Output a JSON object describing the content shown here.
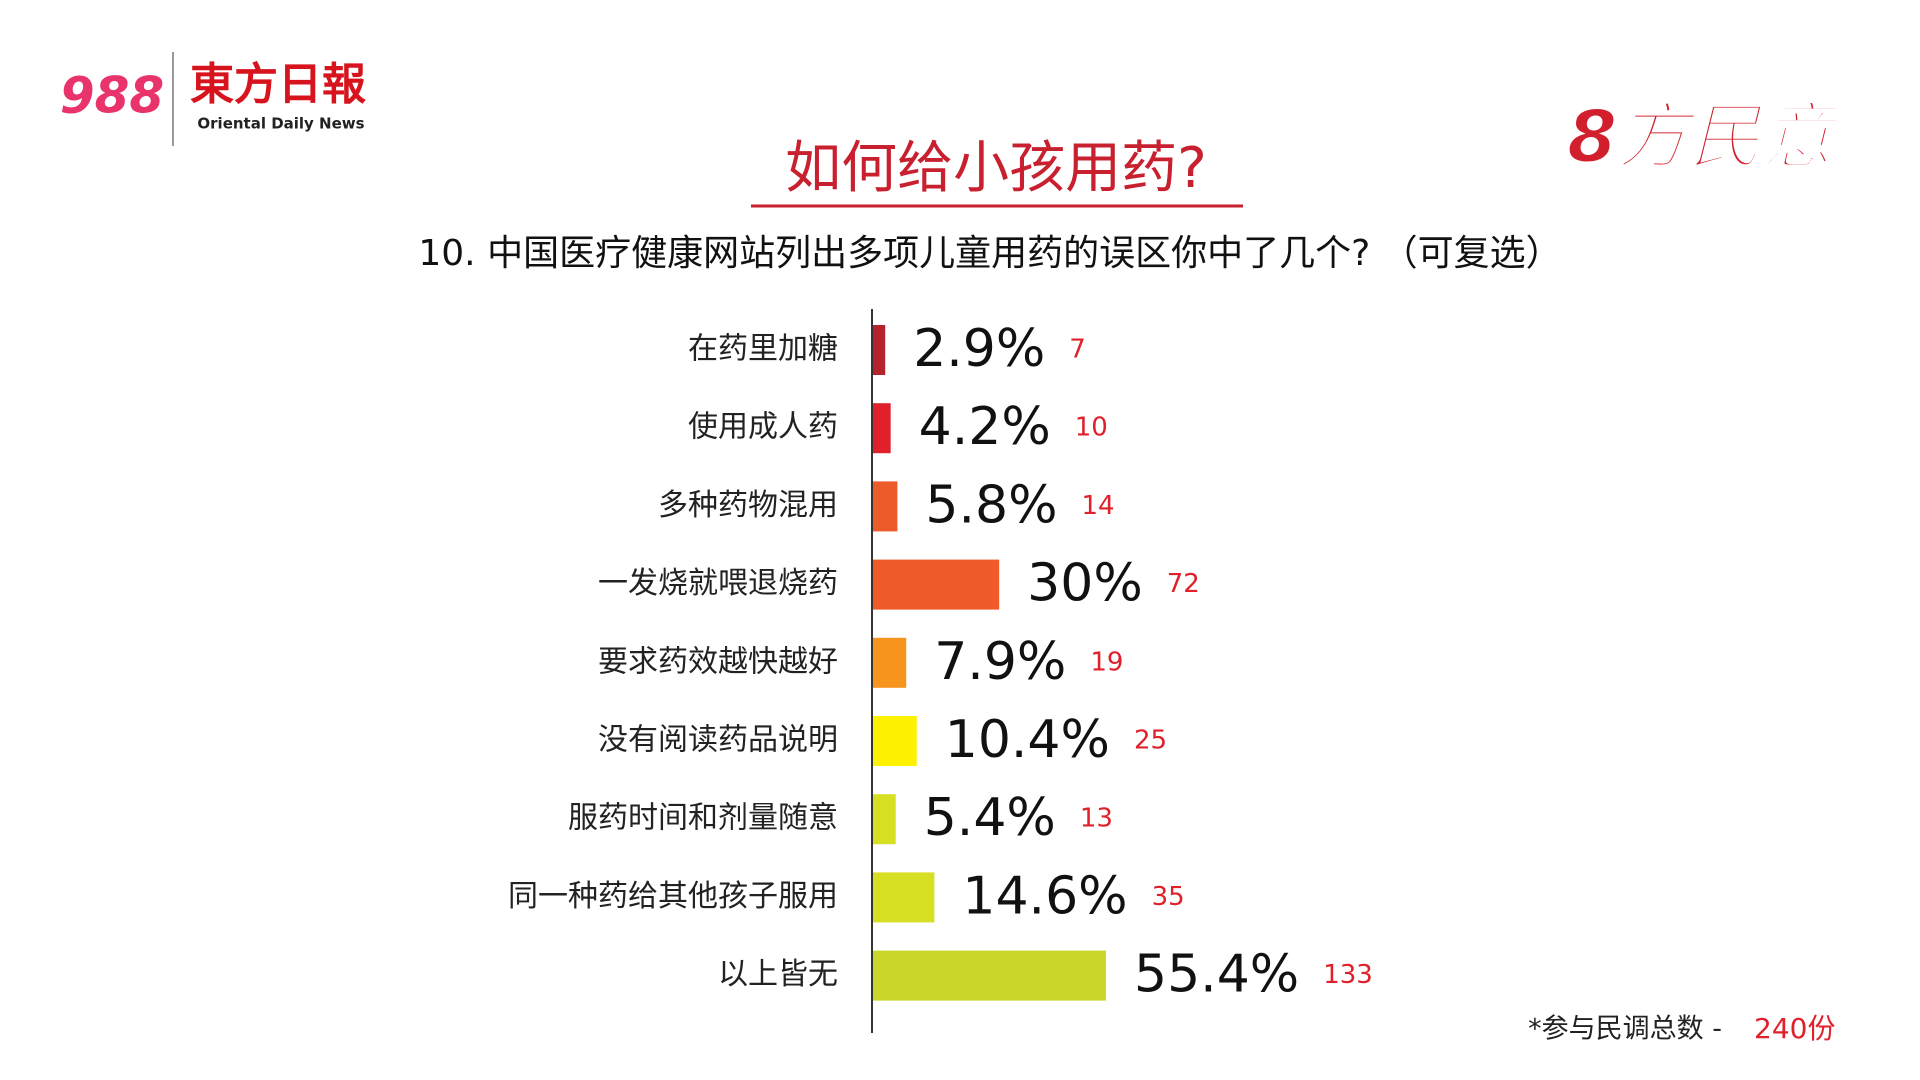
{
  "header": {
    "brand_number": "988",
    "brand_name": "東方日報",
    "brand_english": "Oriental Daily News",
    "badge": "8方民意"
  },
  "chart_data": {
    "type": "hbar",
    "title": "如何给小孩用药?",
    "subtitle": "10. 中国医疗健康网站列出多项儿童用药的误区你中了几个? （可复选）",
    "categories": [
      "在药里加糖",
      "使用成人药",
      "多种药物混用",
      "一发烧就喂退烧药",
      "要求药效越快越好",
      "没有阅读药品说明",
      "服药时间和剂量随意",
      "同一种药给其他孩子服用",
      "以上皆无"
    ],
    "values": [
      2.9,
      4.2,
      5.8,
      30,
      7.9,
      10.4,
      5.4,
      14.6,
      55.4
    ],
    "value_labels": [
      "2.9%",
      "4.2%",
      "5.8%",
      "30%",
      "7.9%",
      "10.4%",
      "5.4%",
      "14.6%",
      "55.4%"
    ],
    "counts": [
      7,
      10,
      14,
      72,
      19,
      25,
      13,
      35,
      133
    ],
    "colors": [
      "#b5232e",
      "#e0202a",
      "#ee5b2a",
      "#f15a29",
      "#f7941d",
      "#fff200",
      "#d7df23",
      "#d7df23",
      "#cbd62b"
    ]
  },
  "footer": {
    "note": "*参与民调总数 - ",
    "total": "240份"
  }
}
